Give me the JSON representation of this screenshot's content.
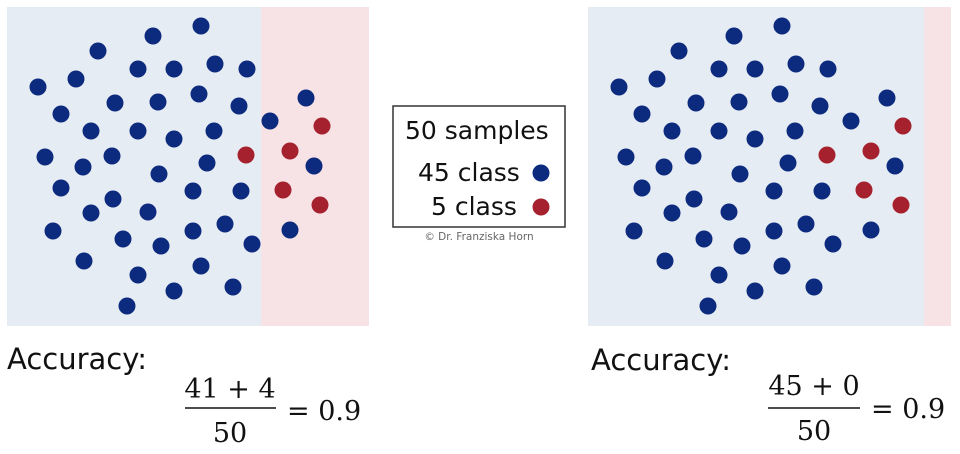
{
  "colors": {
    "region_a": "#e6ecf4",
    "region_b": "#f7e2e6",
    "class_a": "#0d2b7e",
    "class_b": "#a5212e",
    "legend_border": "#333333"
  },
  "legend": {
    "title": "50 samples",
    "item_a": "45 class",
    "item_b": "5 class",
    "credit": "© Dr. Franziska Horn"
  },
  "left_panel": {
    "accuracy_label": "Accuracy:",
    "numerator": "41 + 4",
    "denominator": "50",
    "result": "= 0.9"
  },
  "right_panel": {
    "accuracy_label": "Accuracy:",
    "numerator": "45 + 0",
    "denominator": "50",
    "result": "= 0.9"
  }
}
